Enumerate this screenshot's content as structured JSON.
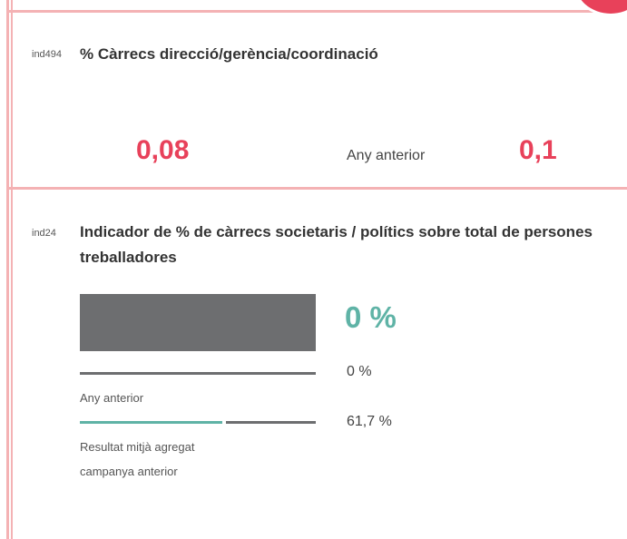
{
  "cards": [
    {
      "code": "ind494",
      "title": "% Càrrecs direcció/gerència/coordinació",
      "current": "0,08",
      "previous_label": "Any anterior",
      "previous": "0,1"
    },
    {
      "code": "ind24",
      "title": "Indicador de % de càrrecs societaris / polítics sobre total de persones treballadores",
      "current": "0 %",
      "previous": "0 %",
      "previous_label": "Any anterior",
      "average": "61,7 %",
      "average_label_lines": [
        "Resultat mitjà agregat",
        "campanya anterior"
      ]
    }
  ]
}
